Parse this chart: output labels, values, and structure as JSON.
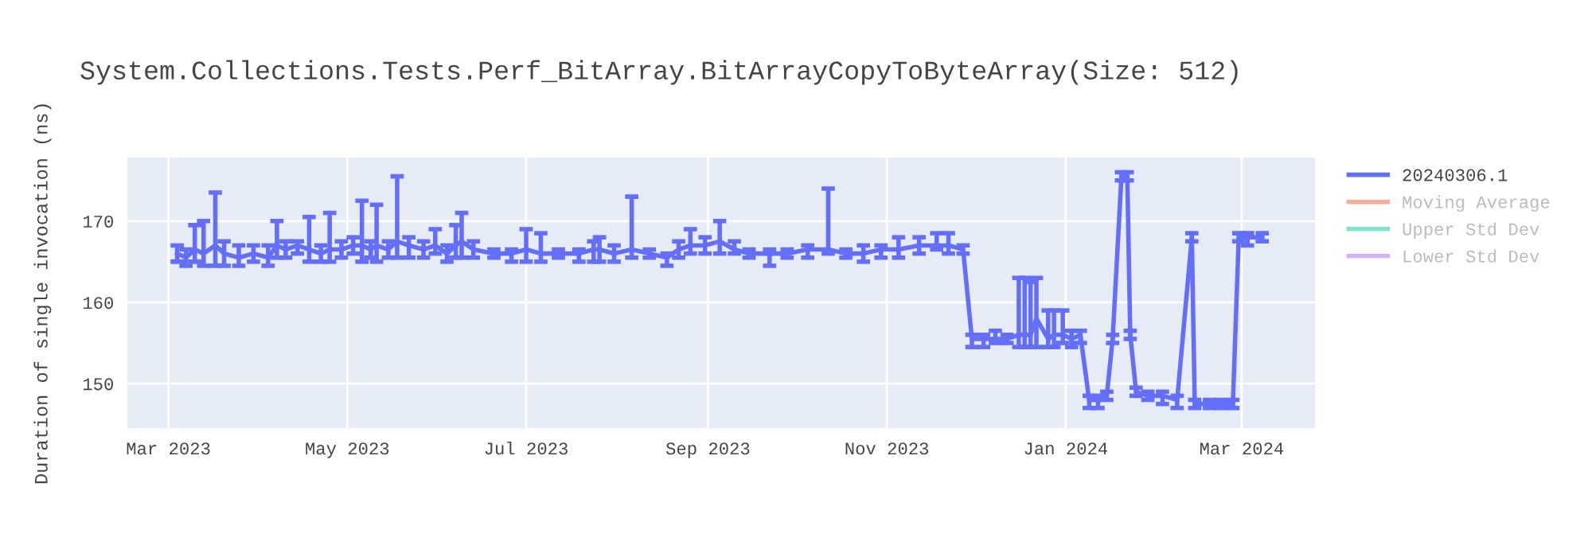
{
  "chart_data": {
    "type": "line",
    "title": "System.Collections.Tests.Perf_BitArray.BitArrayCopyToByteArray(Size: 512)",
    "ylabel": "Duration of single invocation (ns)",
    "x": [
      "2023-03-04",
      "2023-03-07",
      "2023-03-10",
      "2023-03-13",
      "2023-03-17",
      "2023-03-20",
      "2023-03-25",
      "2023-03-30",
      "2023-04-04",
      "2023-04-07",
      "2023-04-10",
      "2023-04-14",
      "2023-04-18",
      "2023-04-22",
      "2023-04-25",
      "2023-04-29",
      "2023-05-03",
      "2023-05-06",
      "2023-05-09",
      "2023-05-11",
      "2023-05-15",
      "2023-05-18",
      "2023-05-22",
      "2023-05-27",
      "2023-05-31",
      "2023-06-04",
      "2023-06-07",
      "2023-06-09",
      "2023-06-13",
      "2023-06-20",
      "2023-06-26",
      "2023-07-01",
      "2023-07-06",
      "2023-07-12",
      "2023-07-19",
      "2023-07-24",
      "2023-07-26",
      "2023-07-31",
      "2023-08-06",
      "2023-08-12",
      "2023-08-18",
      "2023-08-22",
      "2023-08-26",
      "2023-08-31",
      "2023-09-05",
      "2023-09-10",
      "2023-09-15",
      "2023-09-22",
      "2023-09-28",
      "2023-10-05",
      "2023-10-12",
      "2023-10-18",
      "2023-10-24",
      "2023-10-30",
      "2023-11-05",
      "2023-11-12",
      "2023-11-18",
      "2023-11-22",
      "2023-11-27",
      "2023-11-30",
      "2023-12-04",
      "2023-12-08",
      "2023-12-12",
      "2023-12-16",
      "2023-12-18",
      "2023-12-20",
      "2023-12-22",
      "2023-12-26",
      "2023-12-28",
      "2023-12-31",
      "2024-01-03",
      "2024-01-06",
      "2024-01-09",
      "2024-01-12",
      "2024-01-15",
      "2024-01-17",
      "2024-01-20",
      "2024-01-22",
      "2024-01-23",
      "2024-01-25",
      "2024-01-29",
      "2024-02-03",
      "2024-02-08",
      "2024-02-13",
      "2024-02-14",
      "2024-02-19",
      "2024-02-23",
      "2024-02-27",
      "2024-02-29",
      "2024-03-03",
      "2024-03-08"
    ],
    "series": [
      {
        "name": "20240306.1",
        "color": "#636efa",
        "values": [
          166,
          165.5,
          166.5,
          166,
          167,
          166,
          165.5,
          166,
          165.5,
          167,
          166.5,
          167,
          166.5,
          166,
          166.5,
          166.5,
          167,
          167,
          166.5,
          167,
          166.5,
          167.5,
          167,
          166.5,
          167,
          166,
          167,
          167.5,
          166.5,
          166,
          166,
          166.5,
          166,
          166,
          166,
          166.5,
          166.5,
          166,
          166.5,
          166,
          165.5,
          166.5,
          167,
          167,
          167.5,
          166.5,
          166,
          166,
          166,
          166.5,
          166.5,
          166,
          166,
          166.5,
          166.5,
          167,
          167,
          167,
          166.5,
          155.5,
          155.5,
          155.5,
          155.5,
          156,
          156,
          156,
          158,
          155.5,
          156,
          156,
          155.5,
          156,
          148,
          148,
          148.5,
          155.5,
          175.5,
          175.5,
          156,
          149,
          148.5,
          148.5,
          148,
          168,
          147.5,
          147.5,
          147.5,
          147.5,
          168,
          168,
          168
        ],
        "errors": [
          [
            165,
            167
          ],
          [
            164.5,
            166.5
          ],
          [
            165,
            169.5
          ],
          [
            164.5,
            170
          ],
          [
            164.5,
            173.5
          ],
          [
            164.5,
            167.5
          ],
          [
            164.5,
            167
          ],
          [
            165,
            167
          ],
          [
            164.5,
            167
          ],
          [
            165.5,
            170
          ],
          [
            165.5,
            167.5
          ],
          [
            166,
            167.5
          ],
          [
            165,
            170.5
          ],
          [
            165,
            167
          ],
          [
            165,
            171
          ],
          [
            165.5,
            167.5
          ],
          [
            166,
            168
          ],
          [
            165,
            172.5
          ],
          [
            165.5,
            167.5
          ],
          [
            165,
            172
          ],
          [
            165.5,
            167.5
          ],
          [
            165.5,
            175.5
          ],
          [
            165.5,
            168
          ],
          [
            165.5,
            167.5
          ],
          [
            166,
            169
          ],
          [
            165,
            167
          ],
          [
            165.5,
            169.5
          ],
          [
            165.5,
            171
          ],
          [
            165.5,
            167.5
          ],
          [
            165.5,
            166.5
          ],
          [
            165,
            166.5
          ],
          [
            165,
            169
          ],
          [
            165,
            168.5
          ],
          [
            165.5,
            166.5
          ],
          [
            165,
            166.5
          ],
          [
            165,
            167.5
          ],
          [
            165,
            168
          ],
          [
            165,
            167
          ],
          [
            165.5,
            173
          ],
          [
            165.5,
            166.5
          ],
          [
            164.5,
            166
          ],
          [
            165.5,
            167.5
          ],
          [
            166,
            169
          ],
          [
            166,
            168
          ],
          [
            166,
            170
          ],
          [
            166,
            167.5
          ],
          [
            165.5,
            166.5
          ],
          [
            164.5,
            166.5
          ],
          [
            165.5,
            166.5
          ],
          [
            165.5,
            167
          ],
          [
            166,
            174
          ],
          [
            165.5,
            166.5
          ],
          [
            165,
            167
          ],
          [
            165.5,
            167
          ],
          [
            165.5,
            168
          ],
          [
            166,
            168
          ],
          [
            166.5,
            168.5
          ],
          [
            166,
            168.5
          ],
          [
            166,
            167
          ],
          [
            154.5,
            156
          ],
          [
            154.5,
            156
          ],
          [
            155,
            156.5
          ],
          [
            155,
            156
          ],
          [
            154.5,
            163
          ],
          [
            154.5,
            163
          ],
          [
            154.5,
            162.5
          ],
          [
            154.5,
            163
          ],
          [
            154.5,
            159
          ],
          [
            154.5,
            159
          ],
          [
            155,
            159
          ],
          [
            154.5,
            156.5
          ],
          [
            155,
            156.5
          ],
          [
            147,
            148.5
          ],
          [
            147,
            148.5
          ],
          [
            148,
            149
          ],
          [
            155,
            156
          ],
          [
            175,
            176
          ],
          [
            175,
            176
          ],
          [
            155.5,
            156.5
          ],
          [
            148.5,
            149.5
          ],
          [
            148,
            149
          ],
          [
            147.5,
            149
          ],
          [
            147,
            148.5
          ],
          [
            167.5,
            168.5
          ],
          [
            147,
            148
          ],
          [
            147,
            148
          ],
          [
            147,
            148
          ],
          [
            147,
            148
          ],
          [
            167.5,
            168.5
          ],
          [
            167,
            168.5
          ],
          [
            167.5,
            168.5
          ]
        ]
      },
      {
        "name": "Moving Average",
        "color": "#ef553b",
        "values": [
          null,
          null,
          null,
          null,
          null,
          null,
          null,
          null,
          null,
          null,
          null,
          null,
          null,
          null,
          null,
          null,
          null,
          null,
          null,
          null,
          null,
          null,
          null,
          null,
          null,
          null,
          null,
          null,
          null,
          null,
          null,
          null,
          null,
          null,
          null,
          null,
          null,
          null,
          null,
          null,
          null,
          null,
          null,
          null,
          null,
          null,
          null,
          null,
          null,
          null,
          null,
          null,
          null,
          null,
          null,
          null,
          null,
          null,
          null,
          null,
          null,
          null,
          null,
          null,
          null,
          null,
          null,
          null,
          null,
          null,
          null,
          null,
          null,
          null,
          null,
          null,
          null,
          null,
          null,
          null,
          null,
          null,
          null,
          null,
          null,
          null,
          null,
          null,
          null,
          null,
          null
        ]
      },
      {
        "name": "Upper Std Dev",
        "color": "#00cc96",
        "values": [
          null,
          null,
          null,
          null,
          null,
          null,
          null,
          null,
          null,
          null,
          null,
          null,
          null,
          null,
          null,
          null,
          null,
          null,
          null,
          null,
          null,
          null,
          null,
          null,
          null,
          null,
          null,
          null,
          null,
          null,
          null,
          null,
          null,
          null,
          null,
          null,
          null,
          null,
          null,
          null,
          null,
          null,
          null,
          null,
          null,
          null,
          null,
          null,
          null,
          null,
          null,
          null,
          null,
          null,
          null,
          null,
          null,
          null,
          null,
          null,
          null,
          null,
          null,
          null,
          null,
          null,
          null,
          null,
          null,
          null,
          null,
          null,
          null,
          null,
          null,
          null,
          null,
          null,
          null,
          null,
          null,
          null,
          null,
          null,
          null,
          null,
          null,
          null,
          null,
          null,
          null
        ]
      },
      {
        "name": "Lower Std Dev",
        "color": "#ab63fa",
        "values": [
          null,
          null,
          null,
          null,
          null,
          null,
          null,
          null,
          null,
          null,
          null,
          null,
          null,
          null,
          null,
          null,
          null,
          null,
          null,
          null,
          null,
          null,
          null,
          null,
          null,
          null,
          null,
          null,
          null,
          null,
          null,
          null,
          null,
          null,
          null,
          null,
          null,
          null,
          null,
          null,
          null,
          null,
          null,
          null,
          null,
          null,
          null,
          null,
          null,
          null,
          null,
          null,
          null,
          null,
          null,
          null,
          null,
          null,
          null,
          null,
          null,
          null,
          null,
          null,
          null,
          null,
          null,
          null,
          null,
          null,
          null,
          null,
          null,
          null,
          null,
          null,
          null,
          null,
          null,
          null,
          null,
          null,
          null,
          null,
          null,
          null,
          null,
          null,
          null,
          null,
          null
        ]
      }
    ],
    "xlim": [
      "2023-02-15",
      "2024-03-26"
    ],
    "xticks": [
      {
        "value": "2023-03-01",
        "label": "Mar 2023"
      },
      {
        "value": "2023-05-01",
        "label": "May 2023"
      },
      {
        "value": "2023-07-01",
        "label": "Jul 2023"
      },
      {
        "value": "2023-09-01",
        "label": "Sep 2023"
      },
      {
        "value": "2023-11-01",
        "label": "Nov 2023"
      },
      {
        "value": "2024-01-01",
        "label": "Jan 2024"
      },
      {
        "value": "2024-03-01",
        "label": "Mar 2024"
      }
    ],
    "ylim": [
      144.5,
      177.8
    ],
    "yticks": [
      150,
      160,
      170
    ],
    "grid": true,
    "legend": "right",
    "marker": "none",
    "line_style": "solid"
  }
}
